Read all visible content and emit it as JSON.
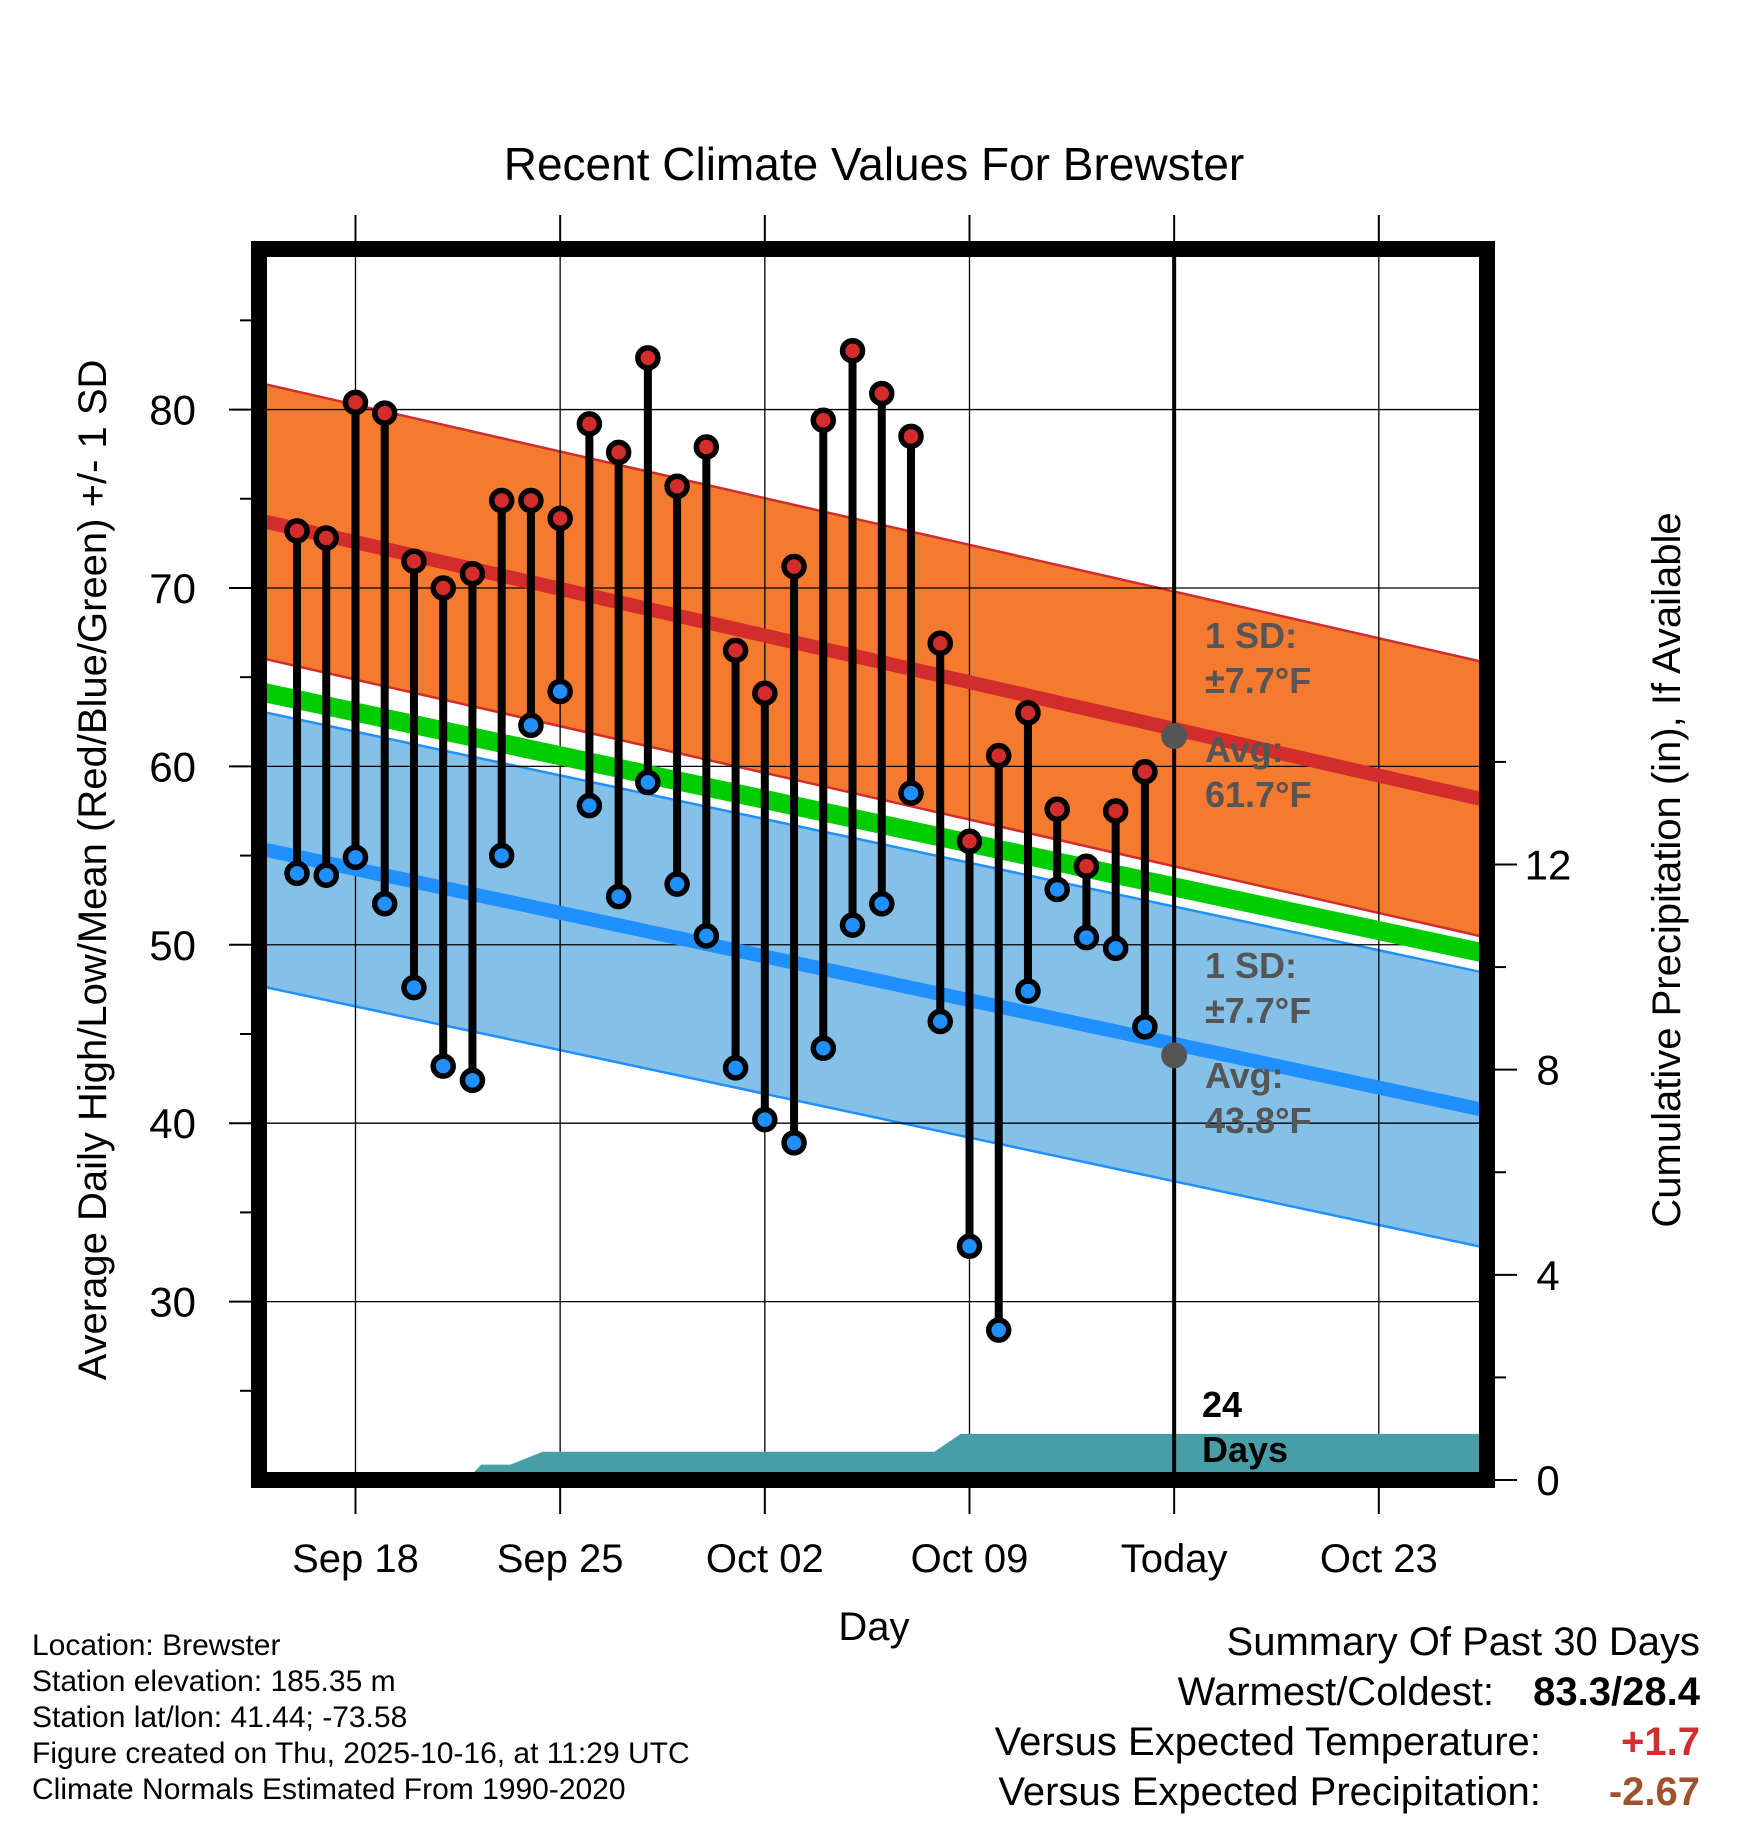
{
  "chart_data": {
    "type": "line",
    "title": "Recent Climate Values For Brewster",
    "xlabel": "Day",
    "ylabel": "Average Daily High/Low/Mean (Red/Blue/Green) +/- 1 SD",
    "y2label": "Cumulative Precipitation (in), If Available",
    "ylim": [
      20,
      89
    ],
    "y2lim": [
      0,
      24
    ],
    "xlim": [
      -3.3,
      38.7
    ],
    "yticks": [
      30,
      40,
      50,
      60,
      70,
      80
    ],
    "y2ticks": [
      0,
      4,
      8,
      12
    ],
    "xticks": [
      {
        "day": 0,
        "label": "Sep 18"
      },
      {
        "day": 7,
        "label": "Sep 25"
      },
      {
        "day": 14,
        "label": "Oct 02"
      },
      {
        "day": 21,
        "label": "Oct 09"
      },
      {
        "day": 28,
        "label": "Today"
      },
      {
        "day": 35,
        "label": "Oct 23"
      }
    ],
    "days": [
      -2,
      -1,
      0,
      1,
      2,
      3,
      4,
      5,
      6,
      7,
      8,
      9,
      10,
      11,
      12,
      13,
      14,
      15,
      16,
      17,
      18,
      19,
      20,
      21,
      22,
      23,
      24,
      25,
      26,
      27
    ],
    "series": [
      {
        "name": "Daily High",
        "color": "#d22c2c",
        "values": [
          73.2,
          72.8,
          80.4,
          79.8,
          71.5,
          70.0,
          70.8,
          74.9,
          74.9,
          73.9,
          79.2,
          77.6,
          82.9,
          75.7,
          77.9,
          66.5,
          64.1,
          71.2,
          79.4,
          83.3,
          80.9,
          78.5,
          66.9,
          55.8,
          60.6,
          63.0,
          57.6,
          54.4,
          57.5,
          59.7
        ]
      },
      {
        "name": "Daily Low",
        "color": "#2090ff",
        "values": [
          54.0,
          53.9,
          54.9,
          52.3,
          47.6,
          43.2,
          42.4,
          55.0,
          62.3,
          64.2,
          57.8,
          52.7,
          59.1,
          53.4,
          50.5,
          43.1,
          40.2,
          38.9,
          44.2,
          51.1,
          52.3,
          58.5,
          45.7,
          33.1,
          28.4,
          47.4,
          53.1,
          50.4,
          49.8,
          45.4
        ]
      }
    ],
    "normals": {
      "high": {
        "start_day": -3.3,
        "start": 73.8,
        "end_day": 38.7,
        "end": 58.1,
        "sd": 7.7,
        "color": "#d22c2c",
        "fill": "#f47a30"
      },
      "low": {
        "start_day": -3.3,
        "start": 55.4,
        "end_day": 38.7,
        "end": 40.7,
        "sd": 7.7,
        "color": "#2090ff",
        "fill": "#84c0e8"
      },
      "mean": {
        "start_day": -3.3,
        "start": 64.2,
        "end_day": 38.7,
        "end": 49.5,
        "color": "#00cc00"
      }
    },
    "precipitation": {
      "color": "#489ea6",
      "points": [
        [
          -3.3,
          0
        ],
        [
          3.8,
          0
        ],
        [
          4.3,
          0.3
        ],
        [
          5.3,
          0.3
        ],
        [
          6.4,
          0.55
        ],
        [
          15.5,
          0.55
        ],
        [
          16.5,
          0.55
        ],
        [
          19.8,
          0.55
        ],
        [
          20.7,
          0.9
        ],
        [
          38.7,
          0.9
        ]
      ]
    },
    "annotations": {
      "high_sd": "1 SD:",
      "high_sd_value": "±7.7°F",
      "high_avg": "Avg:",
      "high_avg_value": "61.7°F",
      "low_sd": "1 SD:",
      "low_sd_value": "±7.7°F",
      "low_avg": "Avg:",
      "low_avg_value": "43.8°F",
      "days_count": "24",
      "days_label": "Days"
    }
  },
  "meta": {
    "location": "Location: Brewster",
    "elevation": "Station elevation: 185.35 m",
    "latlon": "Station lat/lon: 41.44; -73.58",
    "created": "Figure created on Thu, 2025-10-16, at 11:29 UTC",
    "normals": "Climate Normals Estimated From 1990-2020"
  },
  "summary": {
    "title": "Summary Of Past 30 Days",
    "warm_cold_label": "Warmest/Coldest:",
    "warm_cold_value": "83.3/28.4",
    "temp_label": "Versus Expected Temperature:",
    "temp_value": "+1.7",
    "temp_color": "#d22c2c",
    "precip_label": "Versus Expected Precipitation:",
    "precip_value": "-2.67",
    "precip_color": "#a0522d"
  }
}
